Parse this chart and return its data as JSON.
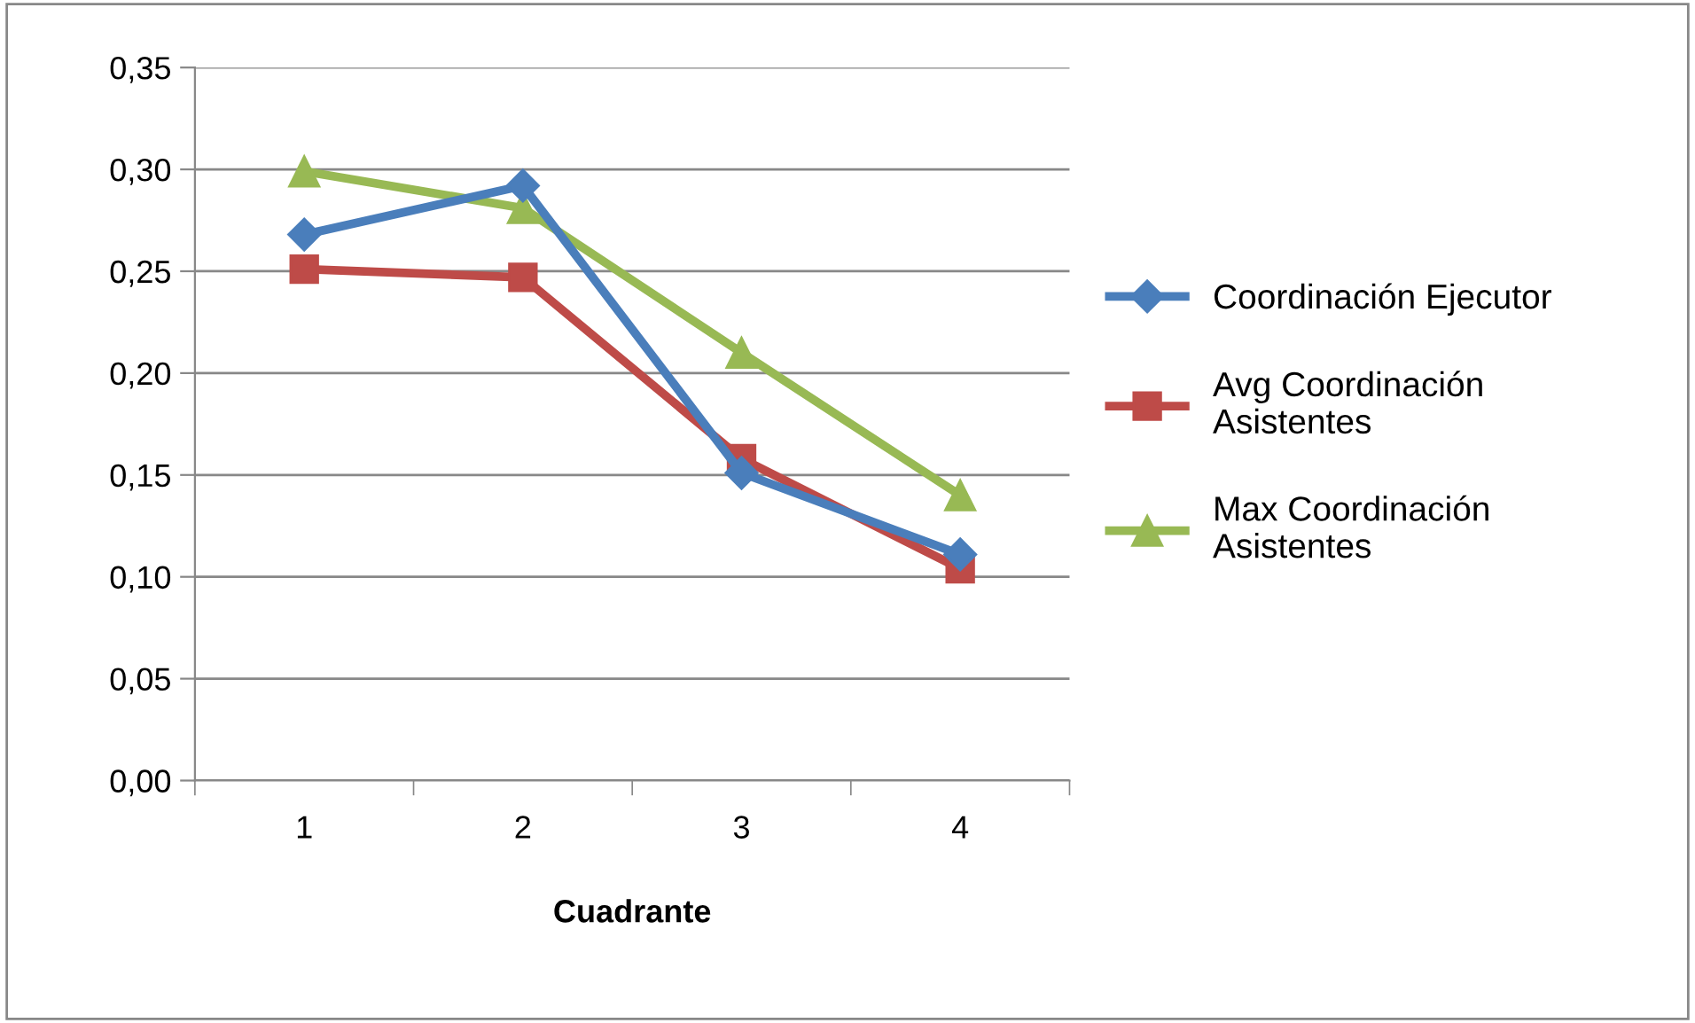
{
  "chart_data": {
    "type": "line",
    "xlabel": "Cuadrante",
    "categories": [
      "1",
      "2",
      "3",
      "4"
    ],
    "series": [
      {
        "name": "Coordinación Ejecutor",
        "color": "#4a7ebb",
        "marker": "diamond",
        "values": [
          0.268,
          0.292,
          0.151,
          0.111
        ]
      },
      {
        "name": "Avg Coordinación Asistentes",
        "color": "#be4b48",
        "marker": "square",
        "values": [
          0.251,
          0.247,
          0.158,
          0.104
        ]
      },
      {
        "name": "Max Coordinación Asistentes",
        "color": "#98b954",
        "marker": "triangle",
        "values": [
          0.299,
          0.281,
          0.21,
          0.14
        ]
      }
    ],
    "ylim": [
      0,
      0.35
    ],
    "yticks": [
      {
        "value": 0,
        "label": "0,00"
      },
      {
        "value": 0.05,
        "label": "0,05"
      },
      {
        "value": 0.1,
        "label": "0,10"
      },
      {
        "value": 0.15,
        "label": "0,15"
      },
      {
        "value": 0.2,
        "label": "0,20"
      },
      {
        "value": 0.25,
        "label": "0,25"
      },
      {
        "value": 0.3,
        "label": "0,30"
      },
      {
        "value": 0.35,
        "label": "0,35"
      }
    ],
    "grid": "y",
    "legend": "right",
    "line_style": "solid"
  }
}
